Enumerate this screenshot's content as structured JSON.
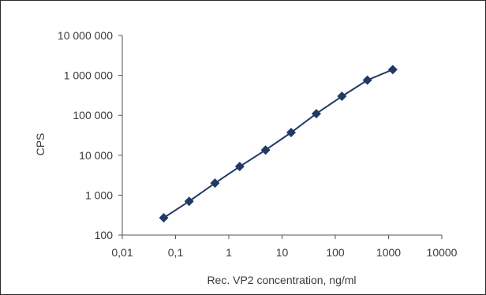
{
  "chart_data": {
    "type": "line",
    "title": "",
    "xlabel": "Rec. VP2 concentration, ng/ml",
    "ylabel": "CPS",
    "xscale": "log",
    "yscale": "log",
    "xlim": [
      0.01,
      10000
    ],
    "ylim": [
      100,
      10000000
    ],
    "x_ticks": [
      {
        "value": 0.01,
        "label": "0,01"
      },
      {
        "value": 0.1,
        "label": "0,1"
      },
      {
        "value": 1,
        "label": "1"
      },
      {
        "value": 10,
        "label": "10"
      },
      {
        "value": 100,
        "label": "100"
      },
      {
        "value": 1000,
        "label": "1000"
      },
      {
        "value": 10000,
        "label": "10000"
      }
    ],
    "y_ticks": [
      {
        "value": 100,
        "label": "100"
      },
      {
        "value": 1000,
        "label": "1 000"
      },
      {
        "value": 10000,
        "label": "10 000"
      },
      {
        "value": 100000,
        "label": "100 000"
      },
      {
        "value": 1000000,
        "label": "1 000 000"
      },
      {
        "value": 10000000,
        "label": "10 000 000"
      }
    ],
    "grid": false,
    "legend": "none",
    "marker": "diamond",
    "color": "#1f3a63",
    "series": [
      {
        "x": [
          0.06,
          0.18,
          0.55,
          1.6,
          4.9,
          14.8,
          44,
          133,
          400,
          1200
        ],
        "y": [
          270,
          700,
          2000,
          5200,
          13500,
          37000,
          110000,
          300000,
          760000,
          1400000
        ]
      }
    ]
  }
}
